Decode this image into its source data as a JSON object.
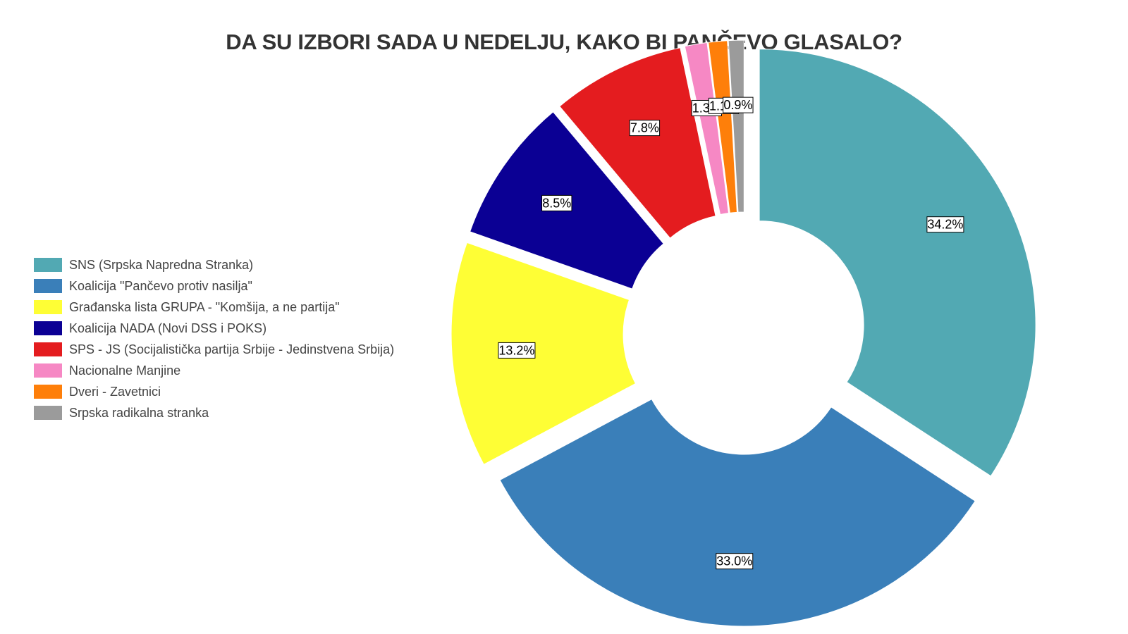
{
  "chart_data": {
    "type": "pie",
    "title": "DA SU IZBORI SADA U NEDELJU, KAKO BI PANČEVO GLASALO?",
    "donut": true,
    "legend_position": "left",
    "slices": [
      {
        "label": "SNS (Srpska Napredna Stranka)",
        "value": 34.2,
        "display": "34.2%",
        "color": "#52a9b3"
      },
      {
        "label": "Koalicija \"Pančevo protiv nasilja\"",
        "value": 33.0,
        "display": "33.0%",
        "color": "#3a7fb9"
      },
      {
        "label": "Građanska lista GRUPA - \"Komšija, a ne partija\"",
        "value": 13.2,
        "display": "13.2%",
        "color": "#fefe35"
      },
      {
        "label": "Koalicija NADA (Novi DSS i POKS)",
        "value": 8.5,
        "display": "8.5%",
        "color": "#0b0094"
      },
      {
        "label": "SPS - JS (Socijalistička partija Srbije - Jedinstvena Srbija)",
        "value": 7.8,
        "display": "7.8%",
        "color": "#e41c1f"
      },
      {
        "label": "Nacionalne Manjine",
        "value": 1.3,
        "display": "1.3%",
        "color": "#f688c4"
      },
      {
        "label": "Dveri - Zavetnici",
        "value": 1.1,
        "display": "1.1%",
        "color": "#fe7f0a"
      },
      {
        "label": "Srpska radikalna stranka",
        "value": 0.9,
        "display": "0.9%",
        "color": "#9b9b9b"
      }
    ]
  }
}
